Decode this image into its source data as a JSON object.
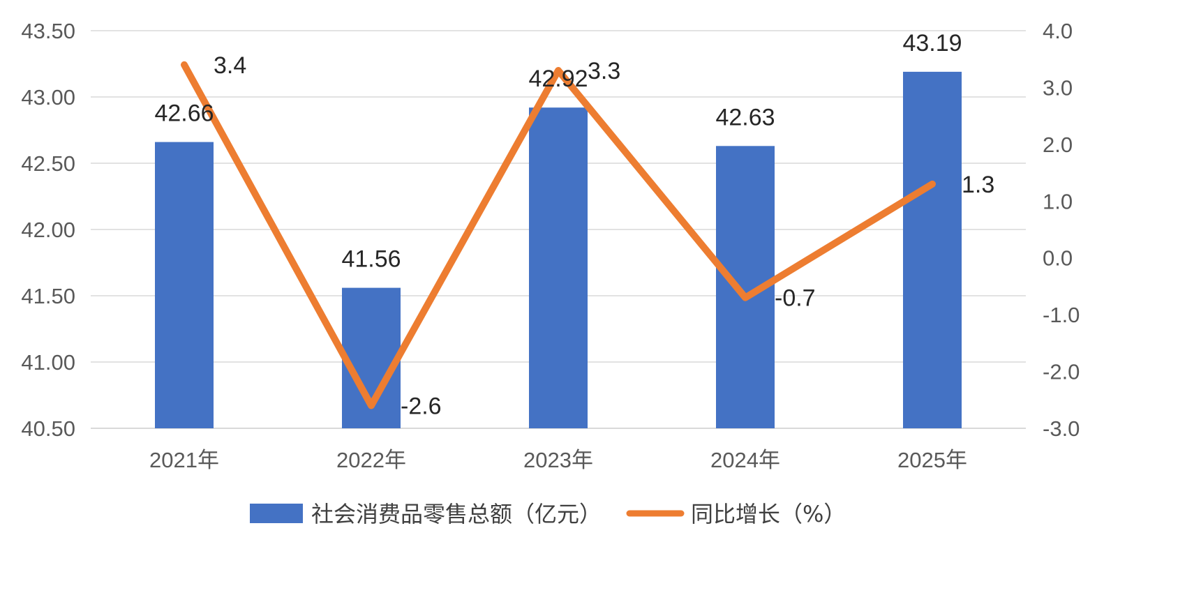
{
  "chart_data": {
    "type": "bar",
    "categories": [
      "2021年",
      "2022年",
      "2023年",
      "2024年",
      "2025年"
    ],
    "series": [
      {
        "name": "社会消费品零售总额（亿元）",
        "type": "bar",
        "axis": "left",
        "color": "#4472C4",
        "values": [
          42.66,
          41.56,
          42.92,
          42.63,
          43.19
        ],
        "labels": [
          "42.66",
          "41.56",
          "42.92",
          "42.63",
          "43.19"
        ]
      },
      {
        "name": "同比增长（%）",
        "type": "line",
        "axis": "right",
        "color": "#ED7D31",
        "values": [
          3.4,
          -2.6,
          3.3,
          -0.7,
          1.3
        ],
        "labels": [
          "3.4",
          "-2.6",
          "3.3",
          "-0.7",
          "1.3"
        ]
      }
    ],
    "y_left": {
      "range": [
        40.5,
        43.5
      ],
      "ticks": [
        "40.50",
        "41.00",
        "41.50",
        "42.00",
        "42.50",
        "43.00",
        "43.50"
      ]
    },
    "y_right": {
      "range": [
        -3.0,
        4.0
      ],
      "ticks": [
        "-3.0",
        "-2.0",
        "-1.0",
        "0.0",
        "1.0",
        "2.0",
        "3.0",
        "4.0"
      ]
    },
    "grid": true,
    "legend": "bottom"
  }
}
